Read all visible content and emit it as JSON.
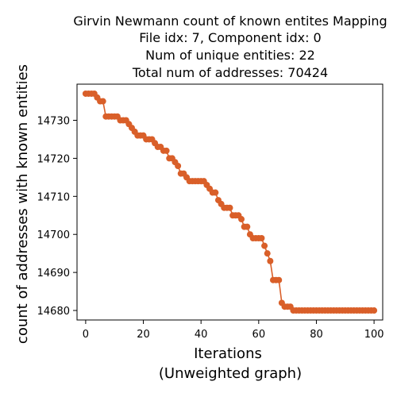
{
  "chart_data": {
    "type": "line",
    "title_lines": [
      "Girvin Newmann count of known entites Mapping",
      "File idx: 7, Component idx: 0",
      "Num of unique entities: 22",
      "Total num of addresses: 70424"
    ],
    "xlabel_lines": [
      "Iterations",
      "(Unweighted graph)"
    ],
    "ylabel": "count of addresses with known entities",
    "xlim": [
      -3,
      103
    ],
    "ylim": [
      14677.5,
      14739.5
    ],
    "x_ticks": [
      0,
      20,
      40,
      60,
      80,
      100
    ],
    "y_ticks": [
      14680,
      14690,
      14700,
      14710,
      14720,
      14730
    ],
    "grid": false,
    "series": [
      {
        "color": "#d95f29",
        "marker": "circle",
        "x": [
          0,
          1,
          2,
          3,
          4,
          5,
          6,
          7,
          8,
          9,
          10,
          11,
          12,
          13,
          14,
          15,
          16,
          17,
          18,
          19,
          20,
          21,
          22,
          23,
          24,
          25,
          26,
          27,
          28,
          29,
          30,
          31,
          32,
          33,
          34,
          35,
          36,
          37,
          38,
          39,
          40,
          41,
          42,
          43,
          44,
          45,
          46,
          47,
          48,
          49,
          50,
          51,
          52,
          53,
          54,
          55,
          56,
          57,
          58,
          59,
          60,
          61,
          62,
          63,
          64,
          65,
          66,
          67,
          68,
          69,
          70,
          71,
          72,
          73,
          74,
          75,
          76,
          77,
          78,
          79,
          80,
          81,
          82,
          83,
          84,
          85,
          86,
          87,
          88,
          89,
          90,
          91,
          92,
          93,
          94,
          95,
          96,
          97,
          98,
          99,
          100
        ],
        "y": [
          14737,
          14737,
          14737,
          14737,
          14736,
          14735,
          14735,
          14731,
          14731,
          14731,
          14731,
          14731,
          14730,
          14730,
          14730,
          14729,
          14728,
          14727,
          14726,
          14726,
          14726,
          14725,
          14725,
          14725,
          14724,
          14723,
          14723,
          14722,
          14722,
          14720,
          14720,
          14719,
          14718,
          14716,
          14716,
          14715,
          14714,
          14714,
          14714,
          14714,
          14714,
          14714,
          14713,
          14712,
          14711,
          14711,
          14709,
          14708,
          14707,
          14707,
          14707,
          14705,
          14705,
          14705,
          14704,
          14702,
          14702,
          14700,
          14699,
          14699,
          14699,
          14699,
          14697,
          14695,
          14693,
          14688,
          14688,
          14688,
          14682,
          14681,
          14681,
          14681,
          14680,
          14680,
          14680,
          14680,
          14680,
          14680,
          14680,
          14680,
          14680,
          14680,
          14680,
          14680,
          14680,
          14680,
          14680,
          14680,
          14680,
          14680,
          14680,
          14680,
          14680,
          14680,
          14680,
          14680,
          14680,
          14680,
          14680,
          14680,
          14680
        ]
      }
    ]
  }
}
